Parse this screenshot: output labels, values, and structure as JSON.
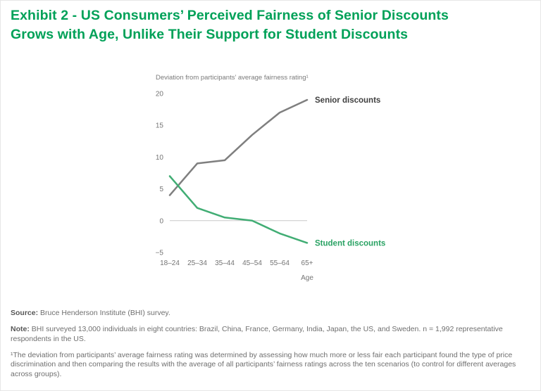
{
  "header": {
    "title_line1": "Exhibit 2 - US Consumers’ Perceived Fairness of Senior Discounts",
    "title_line2": "Grows with Age, Unlike Their Support for Student Discounts"
  },
  "chart_data": {
    "type": "line",
    "ylabel": "Deviation from participants’ average fairness rating¹",
    "xlabel": "Age",
    "categories": [
      "18–24",
      "25–34",
      "35–44",
      "45–54",
      "55–64",
      "65+"
    ],
    "series": [
      {
        "name": "Senior discounts",
        "values": [
          4,
          9,
          9.5,
          13.5,
          17,
          19
        ],
        "color": "#7f7f7f",
        "label_color": "#404040"
      },
      {
        "name": "Student discounts",
        "values": [
          7,
          2,
          0.5,
          0,
          -2,
          -3.5
        ],
        "color": "#41ad74",
        "label_color": "#29a263"
      }
    ],
    "yticks": [
      20,
      15,
      10,
      5,
      0,
      -5
    ],
    "ylim": [
      -5,
      20
    ],
    "grid": "zero-line-only",
    "legend_position": "line-end-labels"
  },
  "footer": {
    "source_label": "Source:",
    "source_text": " Bruce Henderson Institute (BHI) survey.",
    "note_label": "Note:",
    "note_text": " BHI surveyed 13,000 individuals in eight countries: Brazil, China, France, Germany, India, Japan, the US, and Sweden. n = 1,992 representative respondents in the US.",
    "footnote": "¹The deviation from participants’ average fairness rating was determined by assessing how much more or less fair each participant found the type of price discrimination and then comparing the results with the average of all participants’ fairness ratings across the ten scenarios (to control for different averages across groups)."
  },
  "colors": {
    "title_green": "#00a158",
    "zero_line": "#c9c9c9",
    "axis_text": "#747474"
  }
}
